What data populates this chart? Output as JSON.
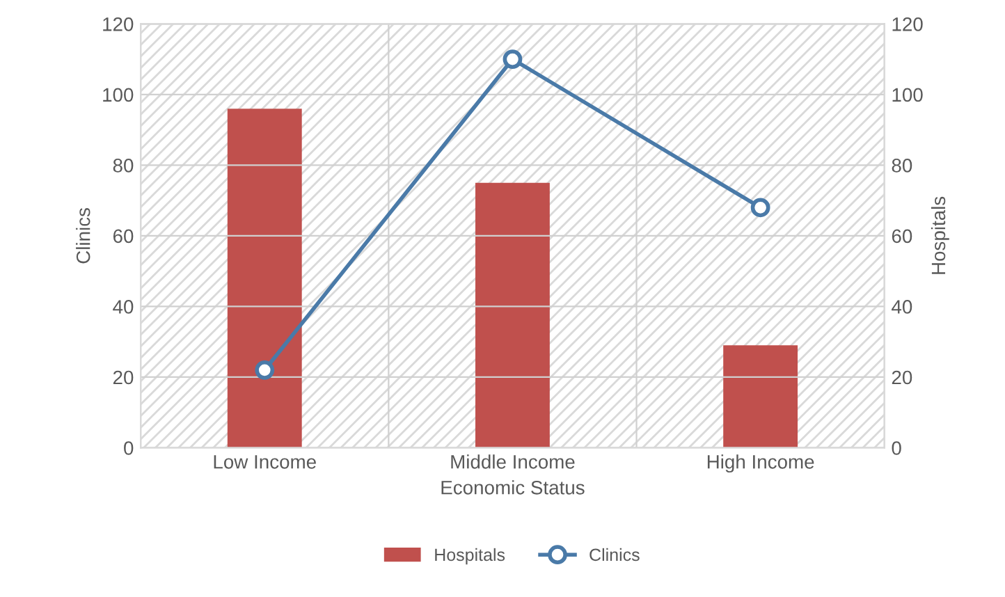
{
  "chart_data": {
    "type": "bar",
    "xlabel": "Economic Status",
    "ylabel": "Clinics",
    "y2label": "Hospitals",
    "categories": [
      "Low Income",
      "Middle Income",
      "High Income"
    ],
    "series": [
      {
        "name": "Hospitals",
        "color": "#c0504d",
        "axis": "y2",
        "values": [
          96,
          75,
          29
        ]
      },
      {
        "name": "Clinics",
        "type": "line",
        "color": "#4a7aa8",
        "axis": "y",
        "marker": "circle",
        "values": [
          22,
          110,
          68
        ]
      }
    ],
    "ylim": [
      0,
      120
    ],
    "yticks": [
      0,
      20,
      40,
      60,
      80,
      100,
      120
    ],
    "y2lim": [
      0,
      120
    ],
    "y2ticks": [
      0,
      20,
      40,
      60,
      80,
      100,
      120
    ],
    "grid": true,
    "legend": "bottom"
  }
}
